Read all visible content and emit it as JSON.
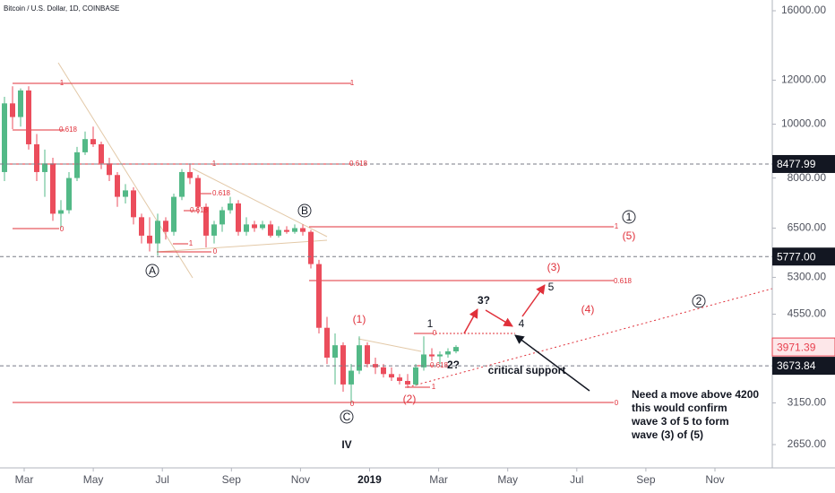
{
  "chart_data": {
    "type": "candlestick",
    "title": "Bitcoin / U.S. Dollar, 1D, COINBASE",
    "log_scale": true,
    "ylim": [
      2406,
      16730
    ],
    "yticks": [
      {
        "value": 16000,
        "label": "16000.00"
      },
      {
        "value": 12000,
        "label": "12000.00"
      },
      {
        "value": 10000,
        "label": "10000.00"
      },
      {
        "value": 8000,
        "label": "8000.00"
      },
      {
        "value": 6500,
        "label": "6500.00"
      },
      {
        "value": 5300,
        "label": "5300.00"
      },
      {
        "value": 4550,
        "label": "4550.00"
      },
      {
        "value": 3150,
        "label": "3150.00"
      },
      {
        "value": 2650,
        "label": "2650.00"
      }
    ],
    "categories": [
      "Mar",
      "May",
      "Jul",
      "Sep",
      "Nov",
      "2019",
      "Mar",
      "May",
      "Jul",
      "Sep",
      "Nov"
    ],
    "up_color": "#53b987",
    "down_color": "#eb4d5c",
    "candles": [
      {
        "open": 8200,
        "high": 11200,
        "low": 7900,
        "close": 10900
      },
      {
        "open": 10900,
        "high": 11700,
        "low": 9800,
        "close": 10300
      },
      {
        "open": 10300,
        "high": 11600,
        "low": 9900,
        "close": 11500
      },
      {
        "open": 11500,
        "high": 11700,
        "low": 9000,
        "close": 9200
      },
      {
        "open": 9200,
        "high": 9600,
        "low": 7900,
        "close": 8200
      },
      {
        "open": 8200,
        "high": 9000,
        "low": 7400,
        "close": 8500
      },
      {
        "open": 8500,
        "high": 8700,
        "low": 6700,
        "close": 6900
      },
      {
        "open": 6900,
        "high": 7300,
        "low": 6500,
        "close": 7000
      },
      {
        "open": 7000,
        "high": 8200,
        "low": 6900,
        "close": 8000
      },
      {
        "open": 8000,
        "high": 9100,
        "low": 7900,
        "close": 8900
      },
      {
        "open": 8900,
        "high": 9700,
        "low": 8800,
        "close": 9400
      },
      {
        "open": 9400,
        "high": 9900,
        "low": 9100,
        "close": 9200
      },
      {
        "open": 9200,
        "high": 9300,
        "low": 8300,
        "close": 8500
      },
      {
        "open": 8500,
        "high": 8700,
        "low": 7900,
        "close": 8100
      },
      {
        "open": 8100,
        "high": 8200,
        "low": 7100,
        "close": 7400
      },
      {
        "open": 7400,
        "high": 7800,
        "low": 7200,
        "close": 7600
      },
      {
        "open": 7600,
        "high": 7700,
        "low": 6600,
        "close": 6800
      },
      {
        "open": 6800,
        "high": 6900,
        "low": 6100,
        "close": 6300
      },
      {
        "open": 6300,
        "high": 6800,
        "low": 5900,
        "close": 6100
      },
      {
        "open": 6100,
        "high": 6900,
        "low": 5800,
        "close": 6700
      },
      {
        "open": 6700,
        "high": 6800,
        "low": 6200,
        "close": 6400
      },
      {
        "open": 6400,
        "high": 7500,
        "low": 6300,
        "close": 7400
      },
      {
        "open": 7400,
        "high": 8300,
        "low": 7300,
        "close": 8200
      },
      {
        "open": 8200,
        "high": 8500,
        "low": 7800,
        "close": 8000
      },
      {
        "open": 8000,
        "high": 8100,
        "low": 6900,
        "close": 7100
      },
      {
        "open": 7100,
        "high": 7200,
        "low": 6000,
        "close": 6300
      },
      {
        "open": 6300,
        "high": 6700,
        "low": 6100,
        "close": 6600
      },
      {
        "open": 6600,
        "high": 7100,
        "low": 6400,
        "close": 7000
      },
      {
        "open": 7000,
        "high": 7400,
        "low": 6900,
        "close": 7200
      },
      {
        "open": 7200,
        "high": 7300,
        "low": 6300,
        "close": 6400
      },
      {
        "open": 6400,
        "high": 6800,
        "low": 6300,
        "close": 6600
      },
      {
        "open": 6600,
        "high": 6700,
        "low": 6400,
        "close": 6500
      },
      {
        "open": 6500,
        "high": 6700,
        "low": 6450,
        "close": 6600
      },
      {
        "open": 6600,
        "high": 6700,
        "low": 6250,
        "close": 6300
      },
      {
        "open": 6300,
        "high": 6550,
        "low": 6250,
        "close": 6450
      },
      {
        "open": 6450,
        "high": 6550,
        "low": 6350,
        "close": 6400
      },
      {
        "open": 6400,
        "high": 6600,
        "low": 6350,
        "close": 6500
      },
      {
        "open": 6500,
        "high": 6600,
        "low": 6300,
        "close": 6400
      },
      {
        "open": 6400,
        "high": 6450,
        "low": 5500,
        "close": 5600
      },
      {
        "open": 5600,
        "high": 5700,
        "low": 4200,
        "close": 4300
      },
      {
        "open": 4300,
        "high": 4500,
        "low": 3700,
        "close": 3800
      },
      {
        "open": 3800,
        "high": 4200,
        "low": 3400,
        "close": 4000
      },
      {
        "open": 4000,
        "high": 4050,
        "low": 3300,
        "close": 3400
      },
      {
        "open": 3400,
        "high": 3700,
        "low": 3150,
        "close": 3600
      },
      {
        "open": 3600,
        "high": 4150,
        "low": 3550,
        "close": 4000
      },
      {
        "open": 4000,
        "high": 4050,
        "low": 3650,
        "close": 3700
      },
      {
        "open": 3700,
        "high": 3800,
        "low": 3550,
        "close": 3650
      },
      {
        "open": 3650,
        "high": 3700,
        "low": 3500,
        "close": 3550
      },
      {
        "open": 3550,
        "high": 3650,
        "low": 3450,
        "close": 3500
      },
      {
        "open": 3500,
        "high": 3550,
        "low": 3400,
        "close": 3450
      },
      {
        "open": 3450,
        "high": 3550,
        "low": 3350,
        "close": 3400
      },
      {
        "open": 3400,
        "high": 3700,
        "low": 3380,
        "close": 3650
      },
      {
        "open": 3650,
        "high": 4150,
        "low": 3600,
        "close": 3850
      },
      {
        "open": 3850,
        "high": 3950,
        "low": 3750,
        "close": 3820
      },
      {
        "open": 3820,
        "high": 3900,
        "low": 3700,
        "close": 3850
      },
      {
        "open": 3850,
        "high": 3950,
        "low": 3800,
        "close": 3900
      },
      {
        "open": 3900,
        "high": 4000,
        "low": 3870,
        "close": 3971.39
      }
    ],
    "price_lines": [
      8477.99,
      {
        "value": 5777,
        "label": "5777.00"
      },
      3673.84
    ],
    "last_price": 3971.39,
    "last_price_color": "#e8414f",
    "fib_labels": [
      "1",
      "1",
      "0.618",
      "0",
      "0.618",
      "1",
      "0.618",
      "0.618",
      "1",
      "0",
      "1",
      "0.618",
      "0",
      "0.618",
      "1",
      "0",
      "0"
    ],
    "circled_labels": [
      "A",
      "B",
      "C",
      "1",
      "2"
    ],
    "red_wave_labels": [
      "(1)",
      "(2)",
      "(3)",
      "(4)",
      "(5)"
    ],
    "black_wave_labels": [
      "1",
      "2?",
      "3?",
      "4",
      "5",
      "IV"
    ],
    "critical_support": "critical support",
    "note": [
      "Need a move above 4200",
      "this would confirm",
      "wave 3 of 5 to form",
      "wave (3) of (5)"
    ]
  }
}
